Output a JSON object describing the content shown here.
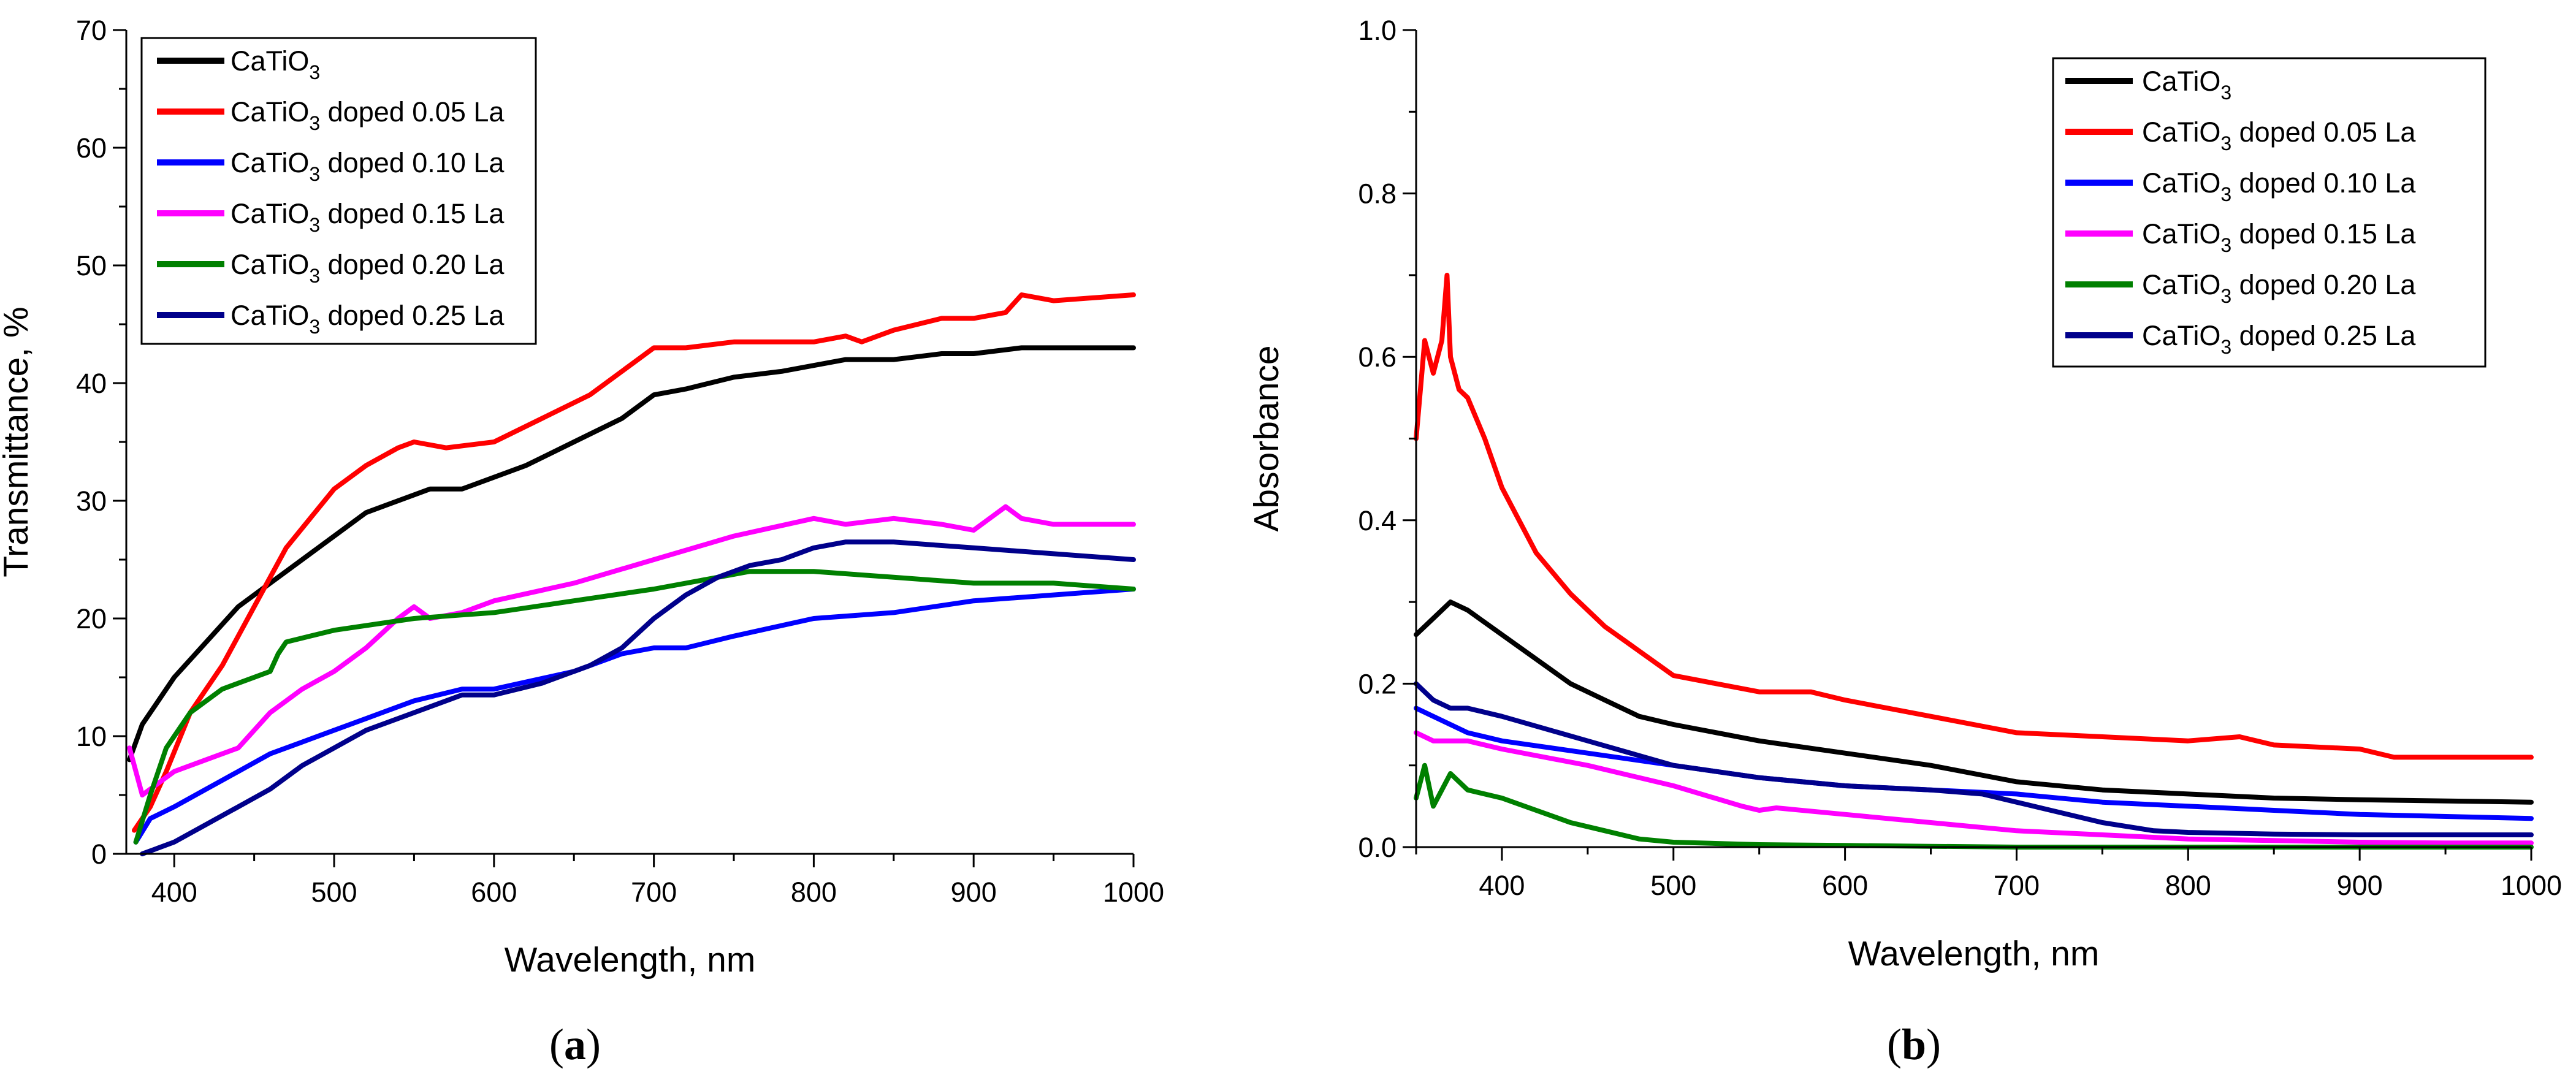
{
  "chart_data": [
    {
      "type": "line",
      "panel": "a",
      "caption": "(a)",
      "xlabel": "Wavelength, nm",
      "ylabel": "Transmittance, %",
      "xlim": [
        370,
        1000
      ],
      "ylim": [
        0,
        70
      ],
      "xticks": [
        400,
        500,
        600,
        700,
        800,
        900,
        1000
      ],
      "yticks": [
        0,
        10,
        20,
        30,
        40,
        50,
        60,
        70
      ],
      "legend_position": "top-left",
      "series": [
        {
          "name": "CaTiO",
          "sub": "3",
          "suffix": "",
          "color": "#000000",
          "x": [
            372,
            380,
            390,
            400,
            420,
            440,
            460,
            480,
            500,
            520,
            540,
            560,
            580,
            600,
            620,
            650,
            680,
            700,
            720,
            750,
            780,
            800,
            820,
            850,
            880,
            900,
            930,
            960,
            1000
          ],
          "y": [
            8,
            11,
            13,
            15,
            18,
            21,
            23,
            25,
            27,
            29,
            30,
            31,
            31,
            32,
            33,
            35,
            37,
            39,
            39.5,
            40.5,
            41,
            41.5,
            42,
            42,
            42.5,
            42.5,
            43,
            43,
            43
          ]
        },
        {
          "name": "CaTiO",
          "sub": "3",
          "suffix": " doped 0.05 La",
          "color": "#ff0000",
          "x": [
            375,
            385,
            395,
            410,
            430,
            450,
            470,
            500,
            520,
            540,
            550,
            570,
            600,
            630,
            660,
            690,
            700,
            720,
            750,
            780,
            800,
            820,
            830,
            850,
            880,
            900,
            920,
            930,
            950,
            1000
          ],
          "y": [
            2,
            4,
            7,
            12,
            16,
            21,
            26,
            31,
            33,
            34.5,
            35,
            34.5,
            35,
            37,
            39,
            42,
            43,
            43,
            43.5,
            43.5,
            43.5,
            44,
            43.5,
            44.5,
            45.5,
            45.5,
            46,
            47.5,
            47,
            47.5
          ]
        },
        {
          "name": "CaTiO",
          "sub": "3",
          "suffix": " doped 0.10 La",
          "color": "#0000ff",
          "x": [
            376,
            385,
            400,
            420,
            440,
            460,
            480,
            500,
            520,
            550,
            580,
            600,
            650,
            680,
            700,
            720,
            750,
            800,
            850,
            900,
            950,
            1000
          ],
          "y": [
            1,
            3,
            4,
            5.5,
            7,
            8.5,
            9.5,
            10.5,
            11.5,
            13,
            14,
            14,
            15.5,
            17,
            17.5,
            17.5,
            18.5,
            20,
            20.5,
            21.5,
            22,
            22.5
          ]
        },
        {
          "name": "CaTiO",
          "sub": "3",
          "suffix": " doped 0.15 La",
          "color": "#ff00ff",
          "x": [
            372,
            380,
            390,
            400,
            420,
            440,
            460,
            480,
            500,
            520,
            540,
            550,
            560,
            580,
            600,
            650,
            700,
            750,
            800,
            820,
            850,
            880,
            900,
            910,
            920,
            930,
            950,
            1000
          ],
          "y": [
            9,
            5,
            6,
            7,
            8,
            9,
            12,
            14,
            15.5,
            17.5,
            20,
            21,
            20,
            20.5,
            21.5,
            23,
            25,
            27,
            28.5,
            28,
            28.5,
            28,
            27.5,
            28.5,
            29.5,
            28.5,
            28,
            28
          ]
        },
        {
          "name": "CaTiO",
          "sub": "3",
          "suffix": " doped 0.20 La",
          "color": "#008000",
          "x": [
            376,
            385,
            395,
            410,
            430,
            450,
            460,
            465,
            470,
            500,
            550,
            600,
            650,
            700,
            720,
            740,
            760,
            800,
            850,
            900,
            950,
            1000
          ],
          "y": [
            1,
            5,
            9,
            12,
            14,
            15,
            15.5,
            17,
            18,
            19,
            20,
            20.5,
            21.5,
            22.5,
            23,
            23.5,
            24,
            24,
            23.5,
            23,
            23,
            22.5
          ]
        },
        {
          "name": "CaTiO",
          "sub": "3",
          "suffix": " doped 0.25 La",
          "color": "#00008b",
          "x": [
            380,
            390,
            400,
            420,
            440,
            460,
            480,
            500,
            520,
            550,
            580,
            600,
            630,
            660,
            680,
            700,
            720,
            740,
            760,
            780,
            800,
            820,
            850,
            900,
            950,
            1000
          ],
          "y": [
            0,
            0.5,
            1,
            2.5,
            4,
            5.5,
            7.5,
            9,
            10.5,
            12,
            13.5,
            13.5,
            14.5,
            16,
            17.5,
            20,
            22,
            23.5,
            24.5,
            25,
            26,
            26.5,
            26.5,
            26,
            25.5,
            25
          ]
        }
      ]
    },
    {
      "type": "line",
      "panel": "b",
      "caption": "(b)",
      "xlabel": "Wavelength, nm",
      "ylabel": "Absorbance",
      "xlim": [
        350,
        1000
      ],
      "ylim": [
        0.0,
        1.0
      ],
      "xticks": [
        400,
        500,
        600,
        700,
        800,
        900,
        1000
      ],
      "yticks": [
        0.0,
        0.2,
        0.4,
        0.6,
        0.8,
        1.0
      ],
      "ytick_labels": [
        "0.0",
        "0.2",
        "0.4",
        "0.6",
        "0.8",
        "1.0"
      ],
      "legend_position": "top-right",
      "series": [
        {
          "name": "CaTiO",
          "sub": "3",
          "suffix": "",
          "color": "#000000",
          "x": [
            350,
            360,
            370,
            380,
            400,
            420,
            440,
            460,
            480,
            500,
            550,
            600,
            650,
            700,
            750,
            800,
            850,
            900,
            1000
          ],
          "y": [
            0.26,
            0.28,
            0.3,
            0.29,
            0.26,
            0.23,
            0.2,
            0.18,
            0.16,
            0.15,
            0.13,
            0.115,
            0.1,
            0.08,
            0.07,
            0.065,
            0.06,
            0.058,
            0.055
          ]
        },
        {
          "name": "CaTiO",
          "sub": "3",
          "suffix": " doped 0.05 La",
          "color": "#ff0000",
          "x": [
            350,
            355,
            360,
            365,
            368,
            370,
            375,
            380,
            390,
            400,
            420,
            440,
            460,
            480,
            500,
            550,
            580,
            600,
            650,
            700,
            750,
            800,
            830,
            850,
            900,
            920,
            950,
            1000
          ],
          "y": [
            0.5,
            0.62,
            0.58,
            0.62,
            0.7,
            0.6,
            0.56,
            0.55,
            0.5,
            0.44,
            0.36,
            0.31,
            0.27,
            0.24,
            0.21,
            0.19,
            0.19,
            0.18,
            0.16,
            0.14,
            0.135,
            0.13,
            0.135,
            0.125,
            0.12,
            0.11,
            0.11,
            0.11
          ]
        },
        {
          "name": "CaTiO",
          "sub": "3",
          "suffix": " doped 0.10 La",
          "color": "#0000ff",
          "x": [
            350,
            360,
            380,
            400,
            450,
            500,
            550,
            600,
            650,
            700,
            750,
            800,
            850,
            900,
            1000
          ],
          "y": [
            0.17,
            0.16,
            0.14,
            0.13,
            0.115,
            0.1,
            0.085,
            0.075,
            0.07,
            0.065,
            0.055,
            0.05,
            0.045,
            0.04,
            0.035
          ]
        },
        {
          "name": "CaTiO",
          "sub": "3",
          "suffix": " doped 0.15 La",
          "color": "#ff00ff",
          "x": [
            350,
            360,
            380,
            400,
            450,
            500,
            540,
            550,
            560,
            600,
            650,
            700,
            750,
            800,
            850,
            900,
            950,
            1000
          ],
          "y": [
            0.14,
            0.13,
            0.13,
            0.12,
            0.1,
            0.075,
            0.05,
            0.045,
            0.048,
            0.04,
            0.03,
            0.02,
            0.015,
            0.01,
            0.008,
            0.006,
            0.005,
            0.005
          ]
        },
        {
          "name": "CaTiO",
          "sub": "3",
          "suffix": " doped 0.20 La",
          "color": "#008000",
          "x": [
            350,
            355,
            360,
            370,
            380,
            400,
            420,
            440,
            460,
            470,
            480,
            500,
            550,
            600,
            650,
            700,
            800,
            900,
            1000
          ],
          "y": [
            0.06,
            0.1,
            0.05,
            0.09,
            0.07,
            0.06,
            0.045,
            0.03,
            0.02,
            0.015,
            0.01,
            0.006,
            0.003,
            0.002,
            0.001,
            0.0,
            0.0,
            0.0,
            0.0
          ]
        },
        {
          "name": "CaTiO",
          "sub": "3",
          "suffix": " doped 0.25 La",
          "color": "#00008b",
          "x": [
            350,
            360,
            370,
            380,
            400,
            450,
            500,
            550,
            600,
            650,
            680,
            700,
            720,
            750,
            780,
            800,
            850,
            900,
            1000
          ],
          "y": [
            0.2,
            0.18,
            0.17,
            0.17,
            0.16,
            0.13,
            0.1,
            0.085,
            0.075,
            0.07,
            0.065,
            0.055,
            0.045,
            0.03,
            0.02,
            0.018,
            0.016,
            0.015,
            0.015
          ]
        }
      ]
    }
  ]
}
